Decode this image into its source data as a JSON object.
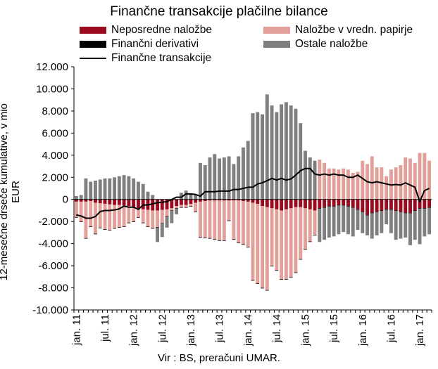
{
  "chart_data": {
    "type": "bar",
    "title": "Finančne transakcije plačilne bilance",
    "ylabel": "12-mesečne drseče kumulative, v mio EUR",
    "xlabel": "",
    "ylim": [
      -10000,
      12000
    ],
    "y_ticks": [
      "12.000",
      "10.000",
      "8.000",
      "6.000",
      "4.000",
      "2.000",
      "0",
      "-2.000",
      "-4.000",
      "-6.000",
      "-8.000",
      "-10.000"
    ],
    "y_tick_values": [
      12000,
      10000,
      8000,
      6000,
      4000,
      2000,
      0,
      -2000,
      -4000,
      -6000,
      -8000,
      -10000
    ],
    "x_ticks": [
      "jan. 11",
      "jul. 11",
      "jan. 12",
      "jul. 12",
      "jan. 13",
      "jul. 13",
      "jan. 14",
      "jul. 14",
      "jan. 15",
      "jul. 15",
      "jan. 16",
      "jul. 16",
      "jan. 17"
    ],
    "x_tick_month_index": [
      0,
      6,
      12,
      18,
      24,
      30,
      36,
      42,
      48,
      54,
      60,
      66,
      72
    ],
    "start_month": "jan. 11",
    "stacked": true,
    "grid": false,
    "legend_position": "top",
    "series": [
      {
        "name": "Neposredne naložbe",
        "kind": "bar",
        "color": "#9b0a1e",
        "values": [
          -200,
          -200,
          -200,
          -150,
          -300,
          -350,
          -400,
          -450,
          -500,
          -500,
          -550,
          -600,
          -700,
          -800,
          -900,
          -950,
          -1000,
          -1000,
          -950,
          -900,
          -800,
          -600,
          -500,
          -500,
          -400,
          -300,
          -200,
          -150,
          -100,
          -100,
          -100,
          -100,
          -100,
          -100,
          -100,
          -150,
          -200,
          -300,
          -400,
          -600,
          -700,
          -800,
          -900,
          -1000,
          -900,
          -800,
          -700,
          -700,
          -800,
          -900,
          -1000,
          -800,
          -700,
          -600,
          -600,
          -500,
          -500,
          -600,
          -700,
          -900,
          -1100,
          -1400,
          -1200,
          -1100,
          -1000,
          -900,
          -900,
          -1000,
          -1100,
          -1200,
          -1200,
          -1000,
          -800,
          -800,
          -700
        ]
      },
      {
        "name": "Naložbe v vredn. papirje",
        "kind": "bar",
        "color": "#e3a09a",
        "values": [
          -1400,
          -1800,
          -3300,
          -2300,
          -2800,
          -2200,
          -2300,
          -2300,
          -2100,
          -2000,
          -1900,
          -1500,
          -1300,
          -800,
          -1200,
          -1500,
          -1600,
          -1500,
          -1200,
          -600,
          -200,
          -200,
          -200,
          -200,
          -200,
          -800,
          -3200,
          -3300,
          -3400,
          -3500,
          -3600,
          -3600,
          -1800,
          -3500,
          -3800,
          -3900,
          -4100,
          -7000,
          -7200,
          -7400,
          -7500,
          -5200,
          -5500,
          -6200,
          -6300,
          -6200,
          -5900,
          -4700,
          -3700,
          -2900,
          -2200,
          3600,
          3300,
          2800,
          2800,
          2700,
          2800,
          2700,
          2400,
          2500,
          3500,
          3200,
          3900,
          2900,
          2900,
          2100,
          2700,
          2900,
          3100,
          3800,
          3700,
          3300,
          4200,
          4200,
          3500
        ]
      },
      {
        "name": "Finančni derivativi",
        "kind": "bar",
        "color": "#000000",
        "values": [
          -50,
          -50,
          -50,
          -50,
          -50,
          -50,
          -50,
          -50,
          -50,
          -50,
          -50,
          -50,
          -50,
          -50,
          -50,
          -50,
          -50,
          -50,
          -50,
          -50,
          -50,
          -50,
          -50,
          -50,
          -50,
          -50,
          -50,
          -50,
          -50,
          -50,
          -50,
          -50,
          -50,
          -50,
          -50,
          -50,
          -50,
          -50,
          -50,
          -50,
          -50,
          -50,
          -50,
          -50,
          -50,
          -50,
          -50,
          -50,
          -50,
          -50,
          -50,
          -50,
          -50,
          -50,
          -50,
          -50,
          -50,
          -50,
          -50,
          -50,
          -50,
          -50,
          -50,
          -50,
          -50,
          -50,
          -50,
          -50,
          -50,
          -50,
          -50,
          -50,
          -50,
          -50,
          -50
        ]
      },
      {
        "name": "Ostale naložbe",
        "kind": "bar",
        "color": "#7f7f7f",
        "values": [
          300,
          400,
          1900,
          1600,
          1700,
          1800,
          1900,
          1900,
          2000,
          2100,
          2200,
          2100,
          1900,
          1600,
          1400,
          700,
          400,
          -1300,
          -1200,
          -1000,
          -1100,
          -500,
          600,
          800,
          500,
          400,
          3300,
          3100,
          3800,
          4100,
          3700,
          3800,
          3900,
          3200,
          3900,
          4700,
          5300,
          7800,
          7900,
          7700,
          9500,
          8500,
          7900,
          8600,
          8800,
          8500,
          8200,
          6900,
          4400,
          3800,
          3500,
          -3000,
          -2900,
          -2800,
          -2700,
          -2600,
          -2400,
          -2500,
          -2600,
          -1800,
          -1900,
          -1800,
          -2300,
          -2100,
          -2000,
          -1300,
          -2100,
          -2600,
          -2400,
          -2200,
          -2900,
          -2600,
          -3200,
          -2500,
          -2400
        ]
      },
      {
        "name": "Finančne transakcije",
        "kind": "line",
        "color": "#000000",
        "values": [
          -1400,
          -1500,
          -1700,
          -1700,
          -1550,
          -1100,
          -1000,
          -1000,
          -950,
          -850,
          -600,
          -700,
          -700,
          -900,
          -500,
          -500,
          -400,
          -300,
          -250,
          -200,
          0,
          200,
          200,
          500,
          500,
          450,
          300,
          700,
          700,
          700,
          750,
          750,
          750,
          900,
          900,
          1000,
          1100,
          1100,
          1400,
          1500,
          1700,
          1900,
          1750,
          1900,
          1750,
          1850,
          2200,
          2600,
          2800,
          2800,
          2300,
          2200,
          2300,
          2200,
          2300,
          2200,
          2200,
          2000,
          2000,
          2200,
          1900,
          1600,
          1500,
          1600,
          1500,
          1400,
          1300,
          1350,
          1300,
          1500,
          1300,
          1100,
          -200,
          800,
          1000
        ]
      }
    ]
  },
  "source": "Vir : BS, preračuni UMAR."
}
